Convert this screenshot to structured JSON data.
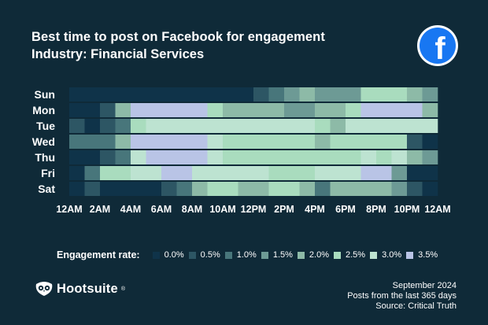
{
  "header": {
    "title": "Best time to post on Facebook for engagement",
    "subtitle": "Industry: Financial Services"
  },
  "logo": {
    "icon": "facebook-icon",
    "letter": "f",
    "color": "#1877f2"
  },
  "legend": {
    "label": "Engagement rate:",
    "items": [
      {
        "label": "0.0%",
        "color": "#0f3349"
      },
      {
        "label": "0.5%",
        "color": "#2d5664"
      },
      {
        "label": "1.0%",
        "color": "#48767b"
      },
      {
        "label": "1.5%",
        "color": "#6d9a95"
      },
      {
        "label": "2.0%",
        "color": "#8dbaa7"
      },
      {
        "label": "2.5%",
        "color": "#a9dcbe"
      },
      {
        "label": "3.0%",
        "color": "#bde3d1"
      },
      {
        "label": "3.5%",
        "color": "#b9c4e6"
      }
    ]
  },
  "chart_data": {
    "type": "heatmap",
    "title": "Best time to post on Facebook for engagement",
    "subtitle": "Industry: Financial Services",
    "rows": [
      "Sun",
      "Mon",
      "Tue",
      "Wed",
      "Thu",
      "Fri",
      "Sat"
    ],
    "x_tick_labels": [
      "12AM",
      "2AM",
      "4AM",
      "6AM",
      "8AM",
      "10AM",
      "12PM",
      "2PM",
      "4PM",
      "6PM",
      "8PM",
      "10PM",
      "12AM"
    ],
    "hours_per_row": 24,
    "value_unit": "%",
    "value_range": [
      0,
      3.5
    ],
    "values": [
      [
        0.0,
        0.0,
        0.0,
        0.0,
        0.0,
        0.0,
        0.0,
        0.0,
        0.0,
        0.0,
        0.0,
        0.0,
        0.5,
        1.0,
        1.5,
        2.0,
        1.5,
        1.5,
        1.5,
        2.5,
        2.5,
        2.5,
        2.0,
        1.5
      ],
      [
        0.0,
        0.0,
        0.5,
        2.0,
        3.5,
        3.5,
        3.5,
        3.5,
        3.5,
        2.5,
        2.0,
        2.0,
        2.0,
        2.0,
        1.5,
        1.5,
        2.0,
        2.0,
        2.5,
        3.5,
        3.5,
        3.5,
        3.5,
        2.0
      ],
      [
        0.5,
        0.0,
        0.5,
        1.0,
        2.5,
        3.0,
        3.0,
        3.0,
        3.0,
        3.0,
        3.0,
        3.0,
        3.0,
        3.0,
        3.0,
        3.0,
        2.5,
        2.0,
        3.0,
        3.0,
        3.0,
        3.0,
        3.0,
        3.0
      ],
      [
        1.0,
        1.0,
        1.0,
        2.0,
        3.5,
        3.5,
        3.5,
        3.5,
        3.5,
        3.0,
        2.5,
        2.5,
        2.5,
        2.5,
        2.5,
        2.5,
        2.0,
        2.5,
        2.5,
        2.5,
        2.5,
        2.5,
        0.5,
        0.0
      ],
      [
        0.0,
        0.0,
        0.5,
        1.0,
        3.0,
        3.5,
        3.5,
        3.5,
        3.5,
        3.0,
        2.5,
        2.5,
        2.5,
        2.5,
        2.5,
        2.5,
        2.5,
        2.5,
        2.5,
        3.0,
        2.5,
        3.0,
        2.0,
        1.5
      ],
      [
        0.0,
        1.0,
        2.5,
        2.5,
        3.0,
        3.0,
        3.5,
        3.5,
        3.0,
        3.0,
        3.0,
        3.0,
        3.0,
        2.5,
        2.5,
        2.5,
        3.0,
        3.0,
        3.0,
        3.5,
        3.5,
        1.5,
        0.0,
        0.0
      ],
      [
        0.0,
        0.5,
        0.0,
        0.0,
        0.0,
        0.0,
        0.5,
        1.0,
        2.0,
        2.5,
        2.5,
        2.0,
        2.0,
        2.5,
        2.5,
        2.0,
        1.0,
        2.0,
        2.0,
        2.0,
        2.0,
        1.5,
        0.5,
        0.0
      ]
    ]
  },
  "brand": {
    "name": "Hootsuite",
    "mark": "®",
    "icon": "owl-icon"
  },
  "source": {
    "date": "September 2024",
    "period": "Posts from the last 365 days",
    "credit": "Source: Critical Truth"
  }
}
